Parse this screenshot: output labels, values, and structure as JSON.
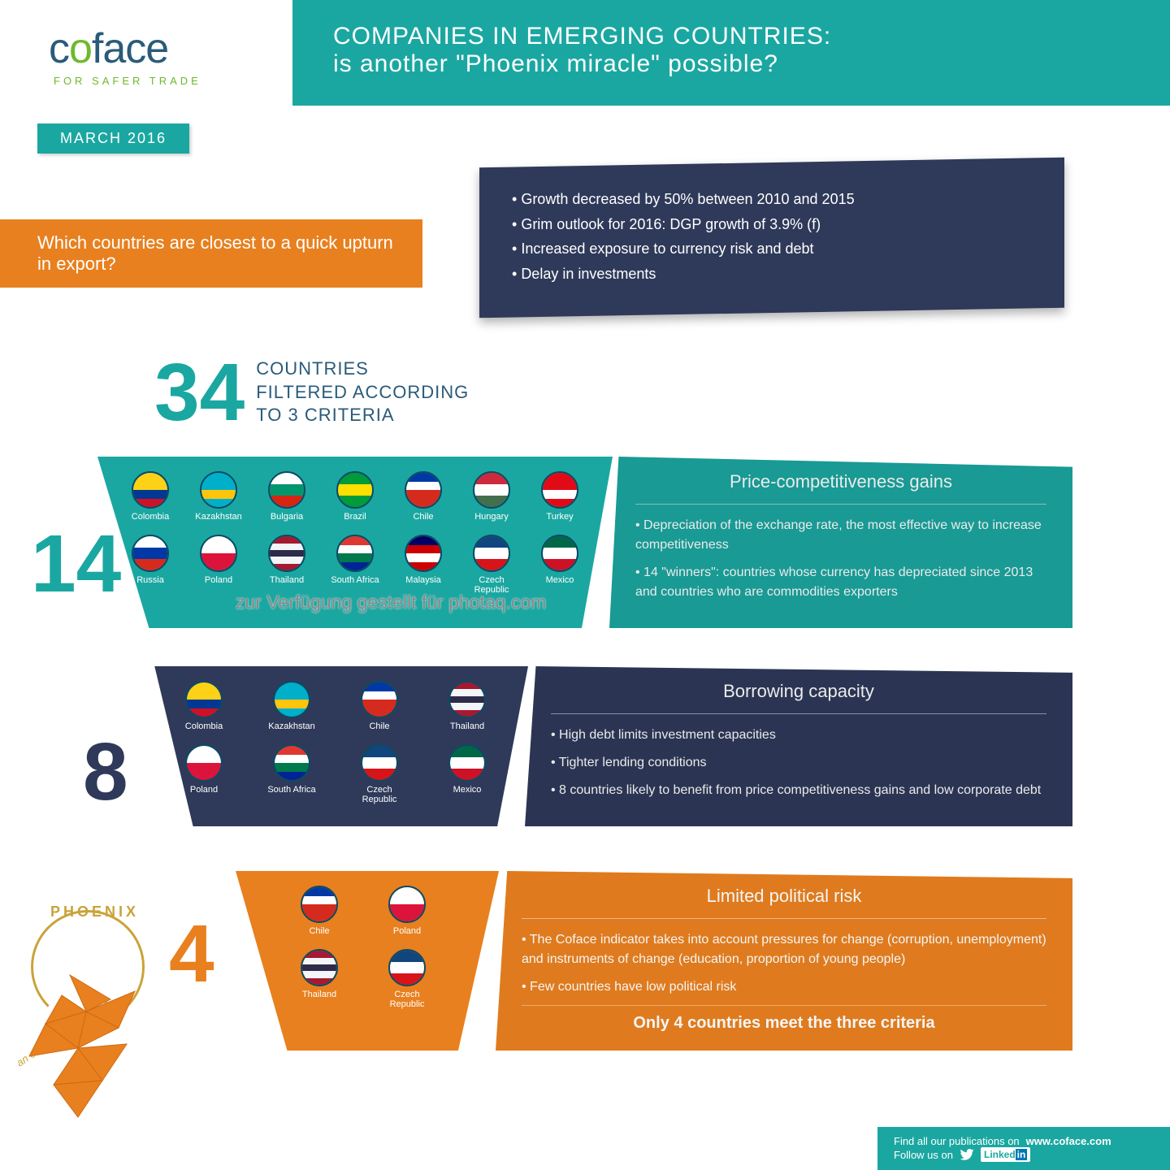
{
  "brand": {
    "name": "coface",
    "tagline": "FOR SAFER TRADE",
    "logo_green": "#6fb92c",
    "logo_blue": "#2a5b7a"
  },
  "header": {
    "line1": "COMPANIES IN EMERGING COUNTRIES:",
    "line2": "is another \"Phoenix miracle\" possible?",
    "bg": "#1ba7a1"
  },
  "date_badge": "MARCH 2016",
  "watermark": "zur Verfügung gestellt für photaq.com",
  "question_banner": "Which countries are closest to a quick upturn in export?",
  "question_bg": "#e8801f",
  "dark_callout": {
    "bg": "#2f3a5a",
    "bullets": [
      "Growth decreased by 50% between 2010 and 2015",
      "Grim outlook for 2016: DGP growth of 3.9% (f)",
      "Increased exposure to currency risk and debt",
      "Delay in investments"
    ]
  },
  "funnel_title": {
    "big_number": "34",
    "line1": "COUNTRIES",
    "line2": "FILTERED ACCORDING",
    "line3": "TO 3 CRITERIA"
  },
  "side_numbers": {
    "t1": "14",
    "t2": "8",
    "t3": "4"
  },
  "colors": {
    "tier1": "#1ba7a1",
    "tier2": "#2f3a5a",
    "tier3": "#e8801f",
    "flag_border": "#0b4a65"
  },
  "tier1": {
    "heading": "Price-competitiveness gains",
    "bullets": [
      "Depreciation of the exchange rate, the most effective way to increase competitiveness",
      "14 \"winners\": countries whose currency has depreciated since 2013 and countries who are commodities exporters"
    ],
    "countries": [
      {
        "label": "Colombia",
        "stripes": [
          "#fcd116",
          "#fcd116",
          "#003893",
          "#ce1126"
        ]
      },
      {
        "label": "Kazakhstan",
        "stripes": [
          "#00afca",
          "#00afca",
          "#fec50c",
          "#00afca"
        ]
      },
      {
        "label": "Bulgaria",
        "stripes": [
          "#ffffff",
          "#00966e",
          "#d62612"
        ]
      },
      {
        "label": "Brazil",
        "stripes": [
          "#009b3a",
          "#fedf00",
          "#009b3a"
        ]
      },
      {
        "label": "Chile",
        "stripes": [
          "#0039a6",
          "#ffffff",
          "#d52b1e",
          "#d52b1e"
        ]
      },
      {
        "label": "Hungary",
        "stripes": [
          "#cd2a3e",
          "#ffffff",
          "#436f4d"
        ]
      },
      {
        "label": "Turkey",
        "stripes": [
          "#e30a17",
          "#e30a17",
          "#ffffff",
          "#e30a17"
        ]
      },
      {
        "label": "Russia",
        "stripes": [
          "#ffffff",
          "#0039a6",
          "#d52b1e"
        ]
      },
      {
        "label": "Poland",
        "stripes": [
          "#ffffff",
          "#dc143c"
        ]
      },
      {
        "label": "Thailand",
        "stripes": [
          "#a51931",
          "#f4f5f8",
          "#2d2a4a",
          "#f4f5f8",
          "#a51931"
        ]
      },
      {
        "label": "South Africa",
        "stripes": [
          "#de3831",
          "#ffffff",
          "#007a4d",
          "#002395"
        ]
      },
      {
        "label": "Malaysia",
        "stripes": [
          "#010066",
          "#cc0001",
          "#ffffff",
          "#cc0001"
        ]
      },
      {
        "label": "Czech\nRepublic",
        "stripes": [
          "#11457e",
          "#ffffff",
          "#d7141a"
        ]
      },
      {
        "label": "Mexico",
        "stripes": [
          "#006847",
          "#ffffff",
          "#ce1126"
        ]
      }
    ]
  },
  "tier2": {
    "heading": "Borrowing capacity",
    "bullets": [
      "High debt limits investment capacities",
      "Tighter lending conditions",
      "8 countries likely to benefit from price competitiveness gains and low corporate debt"
    ],
    "countries": [
      {
        "label": "Colombia",
        "stripes": [
          "#fcd116",
          "#fcd116",
          "#003893",
          "#ce1126"
        ]
      },
      {
        "label": "Kazakhstan",
        "stripes": [
          "#00afca",
          "#00afca",
          "#fec50c",
          "#00afca"
        ]
      },
      {
        "label": "Chile",
        "stripes": [
          "#0039a6",
          "#ffffff",
          "#d52b1e",
          "#d52b1e"
        ]
      },
      {
        "label": "Thailand",
        "stripes": [
          "#a51931",
          "#f4f5f8",
          "#2d2a4a",
          "#f4f5f8",
          "#a51931"
        ]
      },
      {
        "label": "Poland",
        "stripes": [
          "#ffffff",
          "#dc143c"
        ]
      },
      {
        "label": "South Africa",
        "stripes": [
          "#de3831",
          "#ffffff",
          "#007a4d",
          "#002395"
        ]
      },
      {
        "label": "Czech\nRepublic",
        "stripes": [
          "#11457e",
          "#ffffff",
          "#d7141a"
        ]
      },
      {
        "label": "Mexico",
        "stripes": [
          "#006847",
          "#ffffff",
          "#ce1126"
        ]
      }
    ]
  },
  "tier3": {
    "heading": "Limited political risk",
    "bullets": [
      "The Coface indicator takes into account pressures for change (corruption, unemployment) and instruments of change (education, proportion of young people)",
      "Few countries have low political risk"
    ],
    "final_line": "Only 4 countries meet the three criteria",
    "countries": [
      {
        "label": "Chile",
        "stripes": [
          "#0039a6",
          "#ffffff",
          "#d52b1e",
          "#d52b1e"
        ]
      },
      {
        "label": "Poland",
        "stripes": [
          "#ffffff",
          "#dc143c"
        ]
      },
      {
        "label": "Thailand",
        "stripes": [
          "#a51931",
          "#f4f5f8",
          "#2d2a4a",
          "#f4f5f8",
          "#a51931"
        ]
      },
      {
        "label": "Czech\nRepublic",
        "stripes": [
          "#11457e",
          "#ffffff",
          "#d7141a"
        ]
      }
    ]
  },
  "phoenix": {
    "label": "PHOENIX",
    "sub": "an endangered species",
    "ring_color": "#c9a33a",
    "bird_color": "#e8801f"
  },
  "footer": {
    "line1_prefix": "Find all our publications on ",
    "line1_url": "www.coface.com",
    "line2_prefix": "Follow us on",
    "twitter": "twitter",
    "linkedin": "LinkedIn"
  }
}
